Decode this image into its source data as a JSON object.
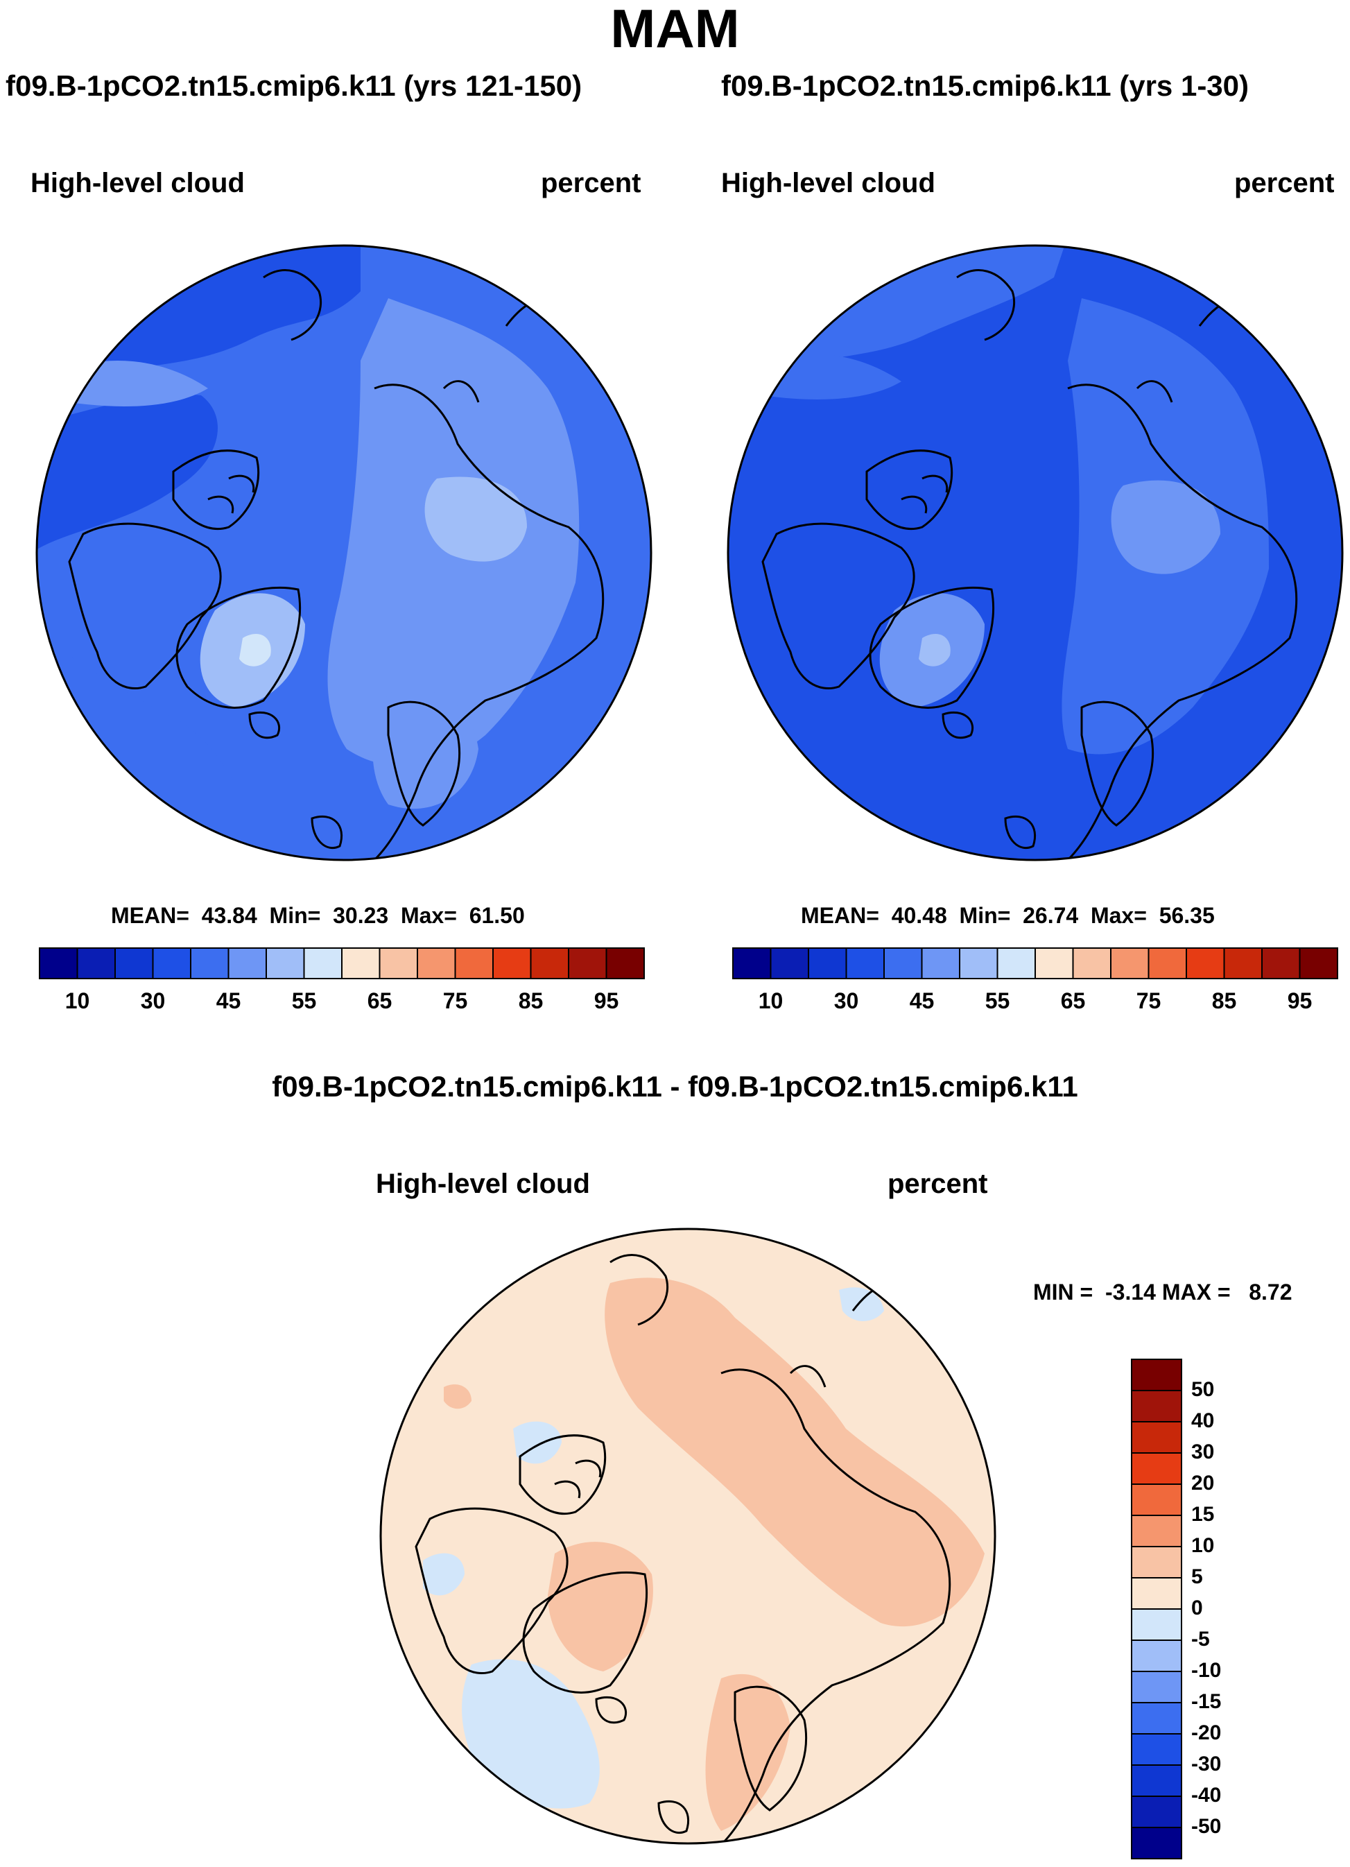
{
  "figure": {
    "title": "MAM",
    "panel_left": {
      "case_title": "f09.B-1pCO2.tn15.cmip6.k11 (yrs 121-150)",
      "variable": "High-level cloud",
      "units": "percent",
      "stats": "MEAN=  43.84  Min=  30.23  Max=  61.50"
    },
    "panel_right": {
      "case_title": "f09.B-1pCO2.tn15.cmip6.k11 (yrs 1-30)",
      "variable": "High-level cloud",
      "units": "percent",
      "stats": "MEAN=  40.48  Min=  26.74  Max=  56.35"
    },
    "panel_diff": {
      "case_title": "f09.B-1pCO2.tn15.cmip6.k11 - f09.B-1pCO2.tn15.cmip6.k11",
      "variable": "High-level cloud",
      "units": "percent",
      "stats": "MIN =  -3.14 MAX =   8.72"
    }
  },
  "colors": {
    "abs_scale": [
      "#00008b",
      "#0a1eb4",
      "#0f37d2",
      "#1e50e6",
      "#3c6ef0",
      "#6e96f5",
      "#a0bef8",
      "#d2e6fa",
      "#fbe6d2",
      "#f8c3a5",
      "#f5966e",
      "#f0693c",
      "#e63c14",
      "#c8280a",
      "#a0140a",
      "#780000"
    ],
    "diff_scale": [
      "#00008b",
      "#0a1eb4",
      "#0f37d2",
      "#1e50e6",
      "#3c6ef0",
      "#6e96f5",
      "#a0bef8",
      "#d2e6fa",
      "#fbe6d2",
      "#f8c3a5",
      "#f5966e",
      "#f0693c",
      "#e63c14",
      "#c8280a",
      "#a0140a",
      "#780000"
    ]
  },
  "colorbar_abs": {
    "labels": [
      "10",
      "30",
      "45",
      "55",
      "65",
      "75",
      "85",
      "95"
    ]
  },
  "colorbar_diff": {
    "labels": [
      "50",
      "40",
      "30",
      "20",
      "15",
      "10",
      "5",
      "0",
      "-5",
      "-10",
      "-15",
      "-20",
      "-30",
      "-40",
      "-50"
    ]
  },
  "chart_data": [
    {
      "type": "heatmap",
      "projection": "north polar stereographic",
      "title": "f09.B-1pCO2.tn15.cmip6.k11 (yrs 121-150)",
      "variable": "High-level cloud",
      "units": "percent",
      "mean": 43.84,
      "min": 30.23,
      "max": 61.5,
      "levels": [
        5,
        10,
        15,
        20,
        25,
        30,
        35,
        40,
        45,
        50,
        55,
        60,
        65,
        70,
        75,
        80,
        85,
        90,
        95
      ],
      "colorbar_tick_labels": [
        10,
        30,
        45,
        55,
        65,
        75,
        85,
        95
      ]
    },
    {
      "type": "heatmap",
      "projection": "north polar stereographic",
      "title": "f09.B-1pCO2.tn15.cmip6.k11 (yrs 1-30)",
      "variable": "High-level cloud",
      "units": "percent",
      "mean": 40.48,
      "min": 26.74,
      "max": 56.35,
      "levels": [
        5,
        10,
        15,
        20,
        25,
        30,
        35,
        40,
        45,
        50,
        55,
        60,
        65,
        70,
        75,
        80,
        85,
        90,
        95
      ],
      "colorbar_tick_labels": [
        10,
        30,
        45,
        55,
        65,
        75,
        85,
        95
      ]
    },
    {
      "type": "heatmap",
      "projection": "north polar stereographic",
      "title": "f09.B-1pCO2.tn15.cmip6.k11 - f09.B-1pCO2.tn15.cmip6.k11",
      "variable": "High-level cloud",
      "units": "percent",
      "min": -3.14,
      "max": 8.72,
      "levels": [
        -50,
        -40,
        -30,
        -20,
        -15,
        -10,
        -5,
        0,
        5,
        10,
        15,
        20,
        30,
        40,
        50
      ]
    }
  ]
}
